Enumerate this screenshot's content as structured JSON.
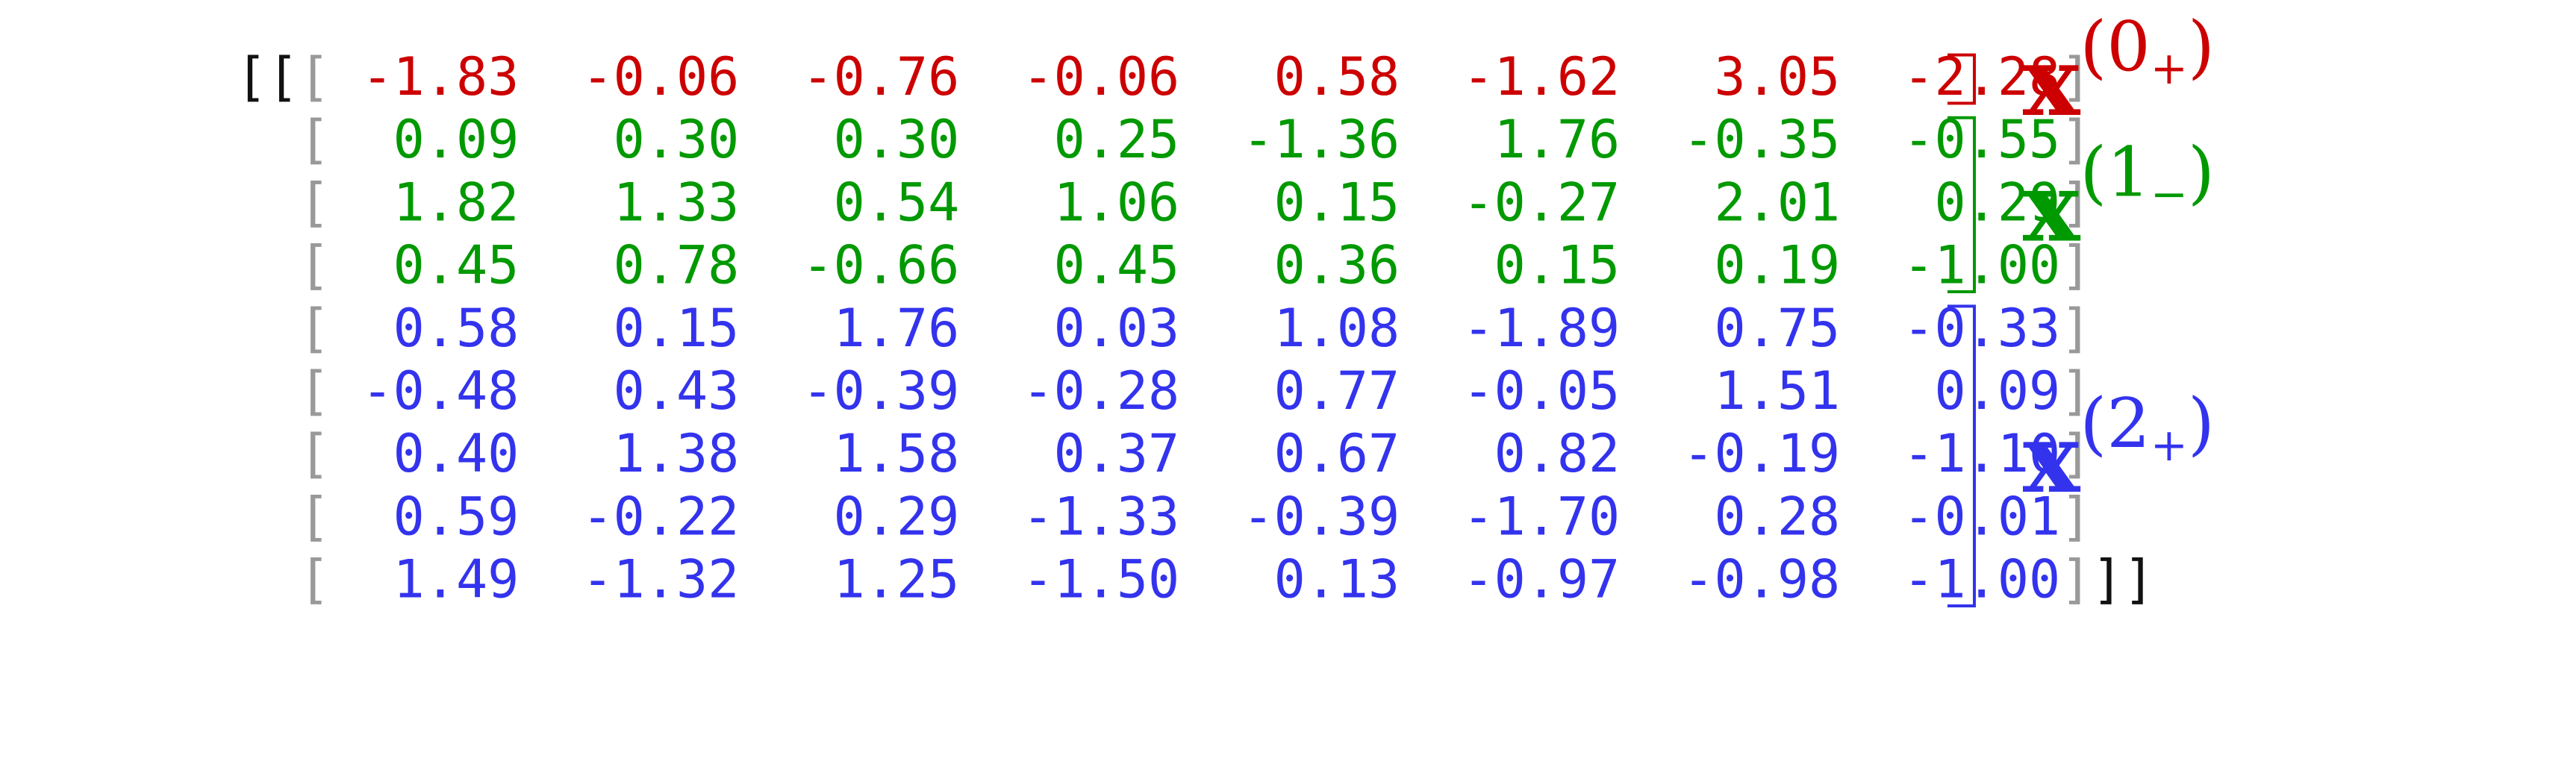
{
  "tensor": {
    "outer_open": "[[",
    "outer_close": "]]",
    "row_open": "[",
    "row_close": "]",
    "rows": [
      [
        "-1.83",
        "-0.06",
        "-0.76",
        "-0.06",
        "0.58",
        "-1.62",
        "3.05",
        "-2.28"
      ],
      [
        "0.09",
        "0.30",
        "0.30",
        "0.25",
        "-1.36",
        "1.76",
        "-0.35",
        "-0.55"
      ],
      [
        "1.82",
        "1.33",
        "0.54",
        "1.06",
        "0.15",
        "-0.27",
        "2.01",
        "0.29"
      ],
      [
        "0.45",
        "0.78",
        "-0.66",
        "0.45",
        "0.36",
        "0.15",
        "0.19",
        "-1.00"
      ],
      [
        "0.58",
        "0.15",
        "1.76",
        "0.03",
        "1.08",
        "-1.89",
        "0.75",
        "-0.33"
      ],
      [
        "-0.48",
        "0.43",
        "-0.39",
        "-0.28",
        "0.77",
        "-0.05",
        "1.51",
        "0.09"
      ],
      [
        "0.40",
        "1.38",
        "1.58",
        "0.37",
        "0.67",
        "0.82",
        "-0.19",
        "-1.10"
      ],
      [
        "0.59",
        "-0.22",
        "0.29",
        "-1.33",
        "-0.39",
        "-1.70",
        "0.28",
        "-0.01"
      ],
      [
        "1.49",
        "-1.32",
        "1.25",
        "-1.50",
        "0.13",
        "-0.97",
        "-0.98",
        "-1.00"
      ]
    ]
  },
  "groups": [
    {
      "base": "x",
      "sup_open": "(",
      "index": "0",
      "sign": "+",
      "sup_close": ")",
      "color": "#cc0000",
      "first_row": 0,
      "last_row": 0
    },
    {
      "base": "x",
      "sup_open": "(",
      "index": "1",
      "sign": "−",
      "sup_close": ")",
      "color": "#009900",
      "first_row": 1,
      "last_row": 3
    },
    {
      "base": "x",
      "sup_open": "(",
      "index": "2",
      "sign": "+",
      "sup_close": ")",
      "color": "#3333ee",
      "first_row": 4,
      "last_row": 8
    }
  ],
  "colors": {
    "outer_bracket": "#111111",
    "row_bracket": "#999999"
  }
}
